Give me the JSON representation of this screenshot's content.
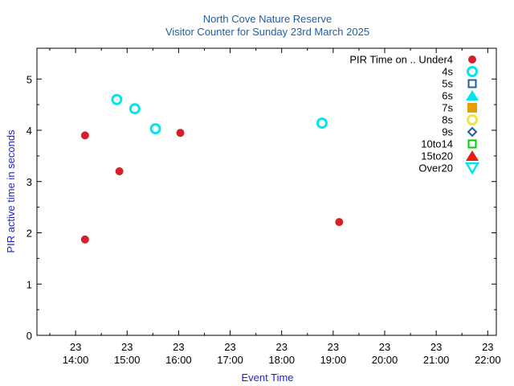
{
  "chart_data": {
    "type": "scatter",
    "title": "North Cove Nature Reserve",
    "subtitle": "Visitor Counter for Sunday 23rd March 2025",
    "xlabel": "Event Time",
    "ylabel": "PIR active time in seconds",
    "xlim": [
      "13:15",
      "22:10"
    ],
    "ylim": [
      0,
      5.6
    ],
    "x_ticks": [
      {
        "time": "14:00",
        "day": "23"
      },
      {
        "time": "15:00",
        "day": "23"
      },
      {
        "time": "16:00",
        "day": "23"
      },
      {
        "time": "17:00",
        "day": "23"
      },
      {
        "time": "18:00",
        "day": "23"
      },
      {
        "time": "19:00",
        "day": "23"
      },
      {
        "time": "20:00",
        "day": "23"
      },
      {
        "time": "21:00",
        "day": "23"
      },
      {
        "time": "22:00",
        "day": "23"
      }
    ],
    "y_ticks": [
      0,
      1,
      2,
      3,
      4,
      5
    ],
    "grid": false,
    "legend_position": "top-right",
    "legend_title": "PIR Time on ..",
    "series": [
      {
        "name": "Under4",
        "marker": "filled-circle",
        "color": "#d42029",
        "points": [
          {
            "x": "14:11",
            "y": 3.9
          },
          {
            "x": "14:11",
            "y": 1.87
          },
          {
            "x": "14:51",
            "y": 3.2
          },
          {
            "x": "16:02",
            "y": 3.95
          },
          {
            "x": "19:07",
            "y": 2.21
          }
        ]
      },
      {
        "name": "4s",
        "marker": "open-circle",
        "color": "#00e5ee",
        "points": [
          {
            "x": "14:48",
            "y": 4.6
          },
          {
            "x": "15:09",
            "y": 4.42
          },
          {
            "x": "15:33",
            "y": 4.03
          },
          {
            "x": "18:47",
            "y": 4.14
          }
        ]
      },
      {
        "name": "5s",
        "marker": "open-square",
        "color": "#1f5fa8",
        "points": []
      },
      {
        "name": "6s",
        "marker": "filled-triangle",
        "color": "#00e5ee",
        "points": []
      },
      {
        "name": "7s",
        "marker": "filled-square",
        "color": "#e69f00",
        "points": []
      },
      {
        "name": "8s",
        "marker": "open-circle",
        "color": "#f0e442",
        "points": []
      },
      {
        "name": "9s",
        "marker": "open-diamond",
        "color": "#1f5fa8",
        "points": []
      },
      {
        "name": "10to14",
        "marker": "open-square",
        "color": "#00cc00",
        "points": []
      },
      {
        "name": "15to20",
        "marker": "filled-triangle",
        "color": "#e51e10",
        "points": []
      },
      {
        "name": "Over20",
        "marker": "open-triangle-down",
        "color": "#00e5ee",
        "points": []
      }
    ]
  }
}
